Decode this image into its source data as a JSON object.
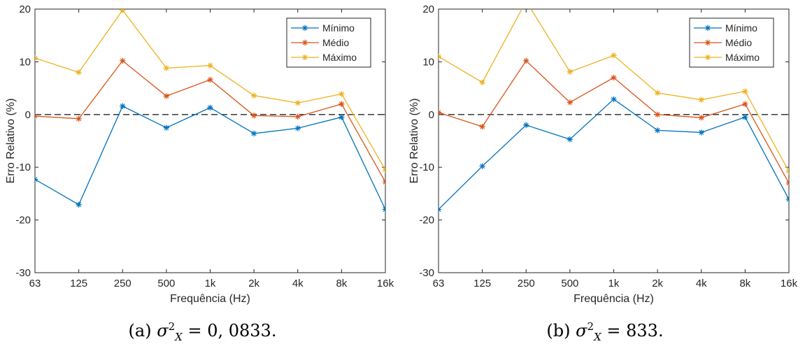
{
  "chart_data": [
    {
      "type": "line",
      "xlabel": "Frequência (Hz)",
      "ylabel": "Erro Relativo (%)",
      "categories": [
        "63",
        "125",
        "250",
        "500",
        "1k",
        "2k",
        "4k",
        "8k",
        "16k"
      ],
      "ylim": [
        -30,
        20
      ],
      "yticks": [
        "-30",
        "-20",
        "-10",
        "0",
        "10",
        "20"
      ],
      "reference_line": 0,
      "grid": false,
      "legend_position": "top-right",
      "series": [
        {
          "name": "Mínimo",
          "color": "#0072BD",
          "values": [
            -12.3,
            -17.1,
            1.6,
            -2.5,
            1.3,
            -3.6,
            -2.6,
            -0.5,
            -18.0
          ]
        },
        {
          "name": "Médio",
          "color": "#D95319",
          "values": [
            -0.3,
            -0.8,
            10.2,
            3.5,
            6.6,
            -0.2,
            -0.4,
            2.0,
            -12.8
          ]
        },
        {
          "name": "Máximo",
          "color": "#EDB120",
          "values": [
            10.7,
            8.0,
            19.8,
            8.8,
            9.3,
            3.6,
            2.2,
            3.9,
            -10.5
          ]
        }
      ],
      "caption": {
        "label": "(a)",
        "math": "σ",
        "sup": "2",
        "sub": "X",
        "eq": " = 0, 0833."
      }
    },
    {
      "type": "line",
      "xlabel": "Frequência (Hz)",
      "ylabel": "Erro Relativo (%)",
      "categories": [
        "63",
        "125",
        "250",
        "500",
        "1k",
        "2k",
        "4k",
        "8k",
        "16k"
      ],
      "ylim": [
        -30,
        20
      ],
      "yticks": [
        "-30",
        "-20",
        "-10",
        "0",
        "10",
        "20"
      ],
      "reference_line": 0,
      "grid": false,
      "legend_position": "top-right",
      "series": [
        {
          "name": "Mínimo",
          "color": "#0072BD",
          "values": [
            -18.0,
            -9.8,
            -2.0,
            -4.7,
            2.9,
            -3.0,
            -3.4,
            -0.5,
            -16.1
          ]
        },
        {
          "name": "Médio",
          "color": "#D95319",
          "values": [
            0.4,
            -2.3,
            10.2,
            2.3,
            7.0,
            0.0,
            -0.6,
            2.0,
            -13.0
          ]
        },
        {
          "name": "Máximo",
          "color": "#EDB120",
          "values": [
            11.0,
            6.1,
            21.5,
            8.1,
            11.2,
            4.1,
            2.8,
            4.4,
            -10.8
          ]
        }
      ],
      "caption": {
        "label": "(b)",
        "math": "σ",
        "sup": "2",
        "sub": "X",
        "eq": " = 833."
      }
    }
  ]
}
